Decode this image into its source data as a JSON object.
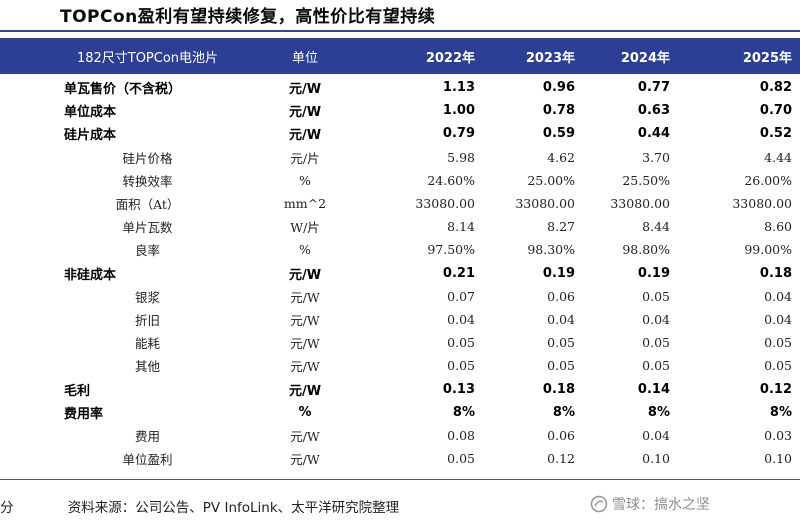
{
  "title": "TOPCon盈利有望持续修复，高性价比有望持续",
  "table": {
    "headers": [
      "182尺寸TOPCon电池片",
      "单位",
      "2022年",
      "2023年",
      "2024年",
      "2025年"
    ],
    "rows": [
      {
        "name": "单瓦售价（不含税）",
        "unit": "元/W",
        "values": [
          "1.13",
          "0.96",
          "0.77",
          "0.82"
        ],
        "bold": true
      },
      {
        "name": "单位成本",
        "unit": "元/W",
        "values": [
          "1.00",
          "0.78",
          "0.63",
          "0.70"
        ],
        "bold": true
      },
      {
        "name": "硅片成本",
        "unit": "元/W",
        "values": [
          "0.79",
          "0.59",
          "0.44",
          "0.52"
        ],
        "bold": true
      },
      {
        "name": "硅片价格",
        "unit": "元/片",
        "values": [
          "5.98",
          "4.62",
          "3.70",
          "4.44"
        ],
        "bold": false
      },
      {
        "name": "转换效率",
        "unit": "%",
        "values": [
          "24.60%",
          "25.00%",
          "25.50%",
          "26.00%"
        ],
        "bold": false
      },
      {
        "name": "面积（At）",
        "unit": "mm^2",
        "values": [
          "33080.00",
          "33080.00",
          "33080.00",
          "33080.00"
        ],
        "bold": false
      },
      {
        "name": "单片瓦数",
        "unit": "W/片",
        "values": [
          "8.14",
          "8.27",
          "8.44",
          "8.60"
        ],
        "bold": false
      },
      {
        "name": "良率",
        "unit": "%",
        "values": [
          "97.50%",
          "98.30%",
          "98.80%",
          "99.00%"
        ],
        "bold": false
      },
      {
        "name": "非硅成本",
        "unit": "元/W",
        "values": [
          "0.21",
          "0.19",
          "0.19",
          "0.18"
        ],
        "bold": true
      },
      {
        "name": "银浆",
        "unit": "元/W",
        "values": [
          "0.07",
          "0.06",
          "0.05",
          "0.04"
        ],
        "bold": false
      },
      {
        "name": "折旧",
        "unit": "元/W",
        "values": [
          "0.04",
          "0.04",
          "0.04",
          "0.04"
        ],
        "bold": false
      },
      {
        "name": "能耗",
        "unit": "元/W",
        "values": [
          "0.05",
          "0.05",
          "0.05",
          "0.05"
        ],
        "bold": false
      },
      {
        "name": "其他",
        "unit": "元/W",
        "values": [
          "0.05",
          "0.05",
          "0.05",
          "0.05"
        ],
        "bold": false
      },
      {
        "name": "毛利",
        "unit": "元/W",
        "values": [
          "0.13",
          "0.18",
          "0.14",
          "0.12"
        ],
        "bold": true
      },
      {
        "name": "费用率",
        "unit": "%",
        "values": [
          "8%",
          "8%",
          "8%",
          "8%"
        ],
        "bold": true
      },
      {
        "name": "费用",
        "unit": "元/W",
        "values": [
          "0.08",
          "0.06",
          "0.04",
          "0.03"
        ],
        "bold": false
      },
      {
        "name": "单位盈利",
        "unit": "元/W",
        "values": [
          "0.05",
          "0.12",
          "0.10",
          "0.10"
        ],
        "bold": false
      }
    ]
  },
  "footer": {
    "lead": "分",
    "source": "资料来源：公司公告、PV InfoLink、太平洋研究院整理",
    "watermark": "雪球：搞水之坚",
    "watermark_icon": "snowball-logo-icon"
  }
}
